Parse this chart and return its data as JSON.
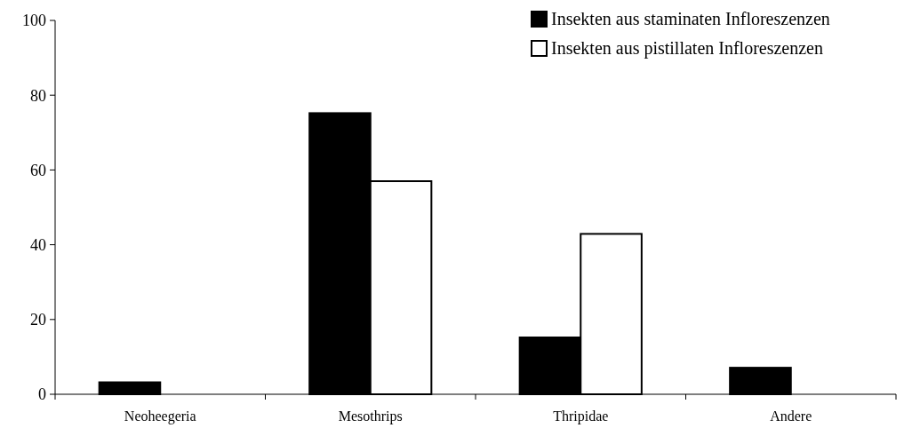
{
  "chart_data": {
    "type": "bar",
    "categories": [
      "Neoheegeria",
      "Mesothrips",
      "Thripidae",
      "Andere"
    ],
    "series": [
      {
        "name": "Insekten aus staminaten Infloreszenzen",
        "color": "#000000",
        "values": [
          3.2,
          75.2,
          15.2,
          7.1
        ]
      },
      {
        "name": "Insekten aus pistillaten Infloreszenzen",
        "color": "#ffffff",
        "values": [
          null,
          57,
          42.9,
          null
        ]
      }
    ],
    "ylim": [
      0,
      100
    ],
    "yticks": [
      0,
      20,
      40,
      60,
      80,
      100
    ],
    "grid": false,
    "legend": "top right"
  }
}
